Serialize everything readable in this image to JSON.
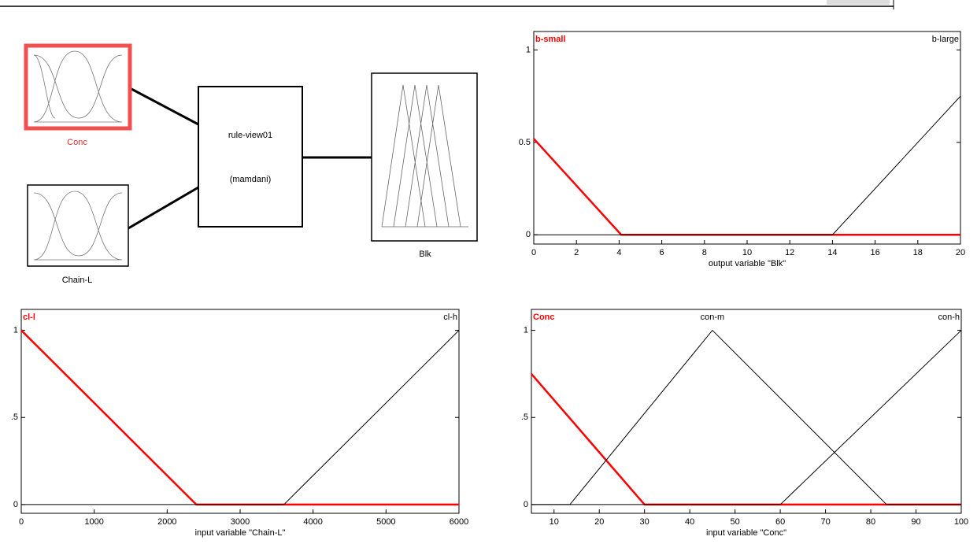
{
  "diagram": {
    "nodes": [
      {
        "label": "Conc"
      },
      {
        "label": "Chain-L"
      },
      {
        "label": "rule-view01",
        "sublabel": "(mamdani)"
      },
      {
        "label": "Blk"
      }
    ]
  },
  "chart_data": [
    {
      "type": "line",
      "xlabel": "output variable \"Blk\"",
      "xlim": [
        0,
        20
      ],
      "ylim": [
        -0.05,
        1.1
      ],
      "xticks": [
        0,
        2,
        4,
        6,
        8,
        10,
        12,
        14,
        16,
        18,
        20
      ],
      "yticks": [
        0,
        0.5,
        1
      ],
      "series": [
        {
          "name": "b-small",
          "color": "#ff0000",
          "x": [
            0,
            4.1,
            20
          ],
          "values": [
            0.52,
            0,
            0
          ]
        },
        {
          "name": "b-large",
          "color": "#000000",
          "x": [
            0,
            14,
            20
          ],
          "values": [
            0,
            0,
            0.75
          ]
        }
      ]
    },
    {
      "type": "line",
      "xlabel": "input variable \"Chain-L\"",
      "xlim": [
        0,
        6000
      ],
      "ylim": [
        -0.05,
        1.12
      ],
      "xticks": [
        0,
        1000,
        2000,
        3000,
        4000,
        5000,
        6000
      ],
      "yticks": [
        0,
        {
          "value": 0.5,
          "label": ".5"
        },
        1
      ],
      "series": [
        {
          "name": "cl-l",
          "color": "#ff0000",
          "x": [
            0,
            2400,
            6000
          ],
          "values": [
            1,
            0,
            0
          ]
        },
        {
          "name": "cl-h",
          "color": "#000000",
          "x": [
            0,
            3600,
            6000
          ],
          "values": [
            0,
            0,
            1
          ]
        }
      ]
    },
    {
      "type": "line",
      "xlabel": "input variable \"Conc\"",
      "xlim": [
        5,
        100
      ],
      "ylim": [
        -0.05,
        1.12
      ],
      "xticks": [
        10,
        20,
        30,
        40,
        50,
        60,
        70,
        80,
        90,
        100
      ],
      "yticks": [
        0,
        {
          "value": 0.5,
          "label": ".5"
        },
        1
      ],
      "series": [
        {
          "name": "Conc",
          "color": "#ff0000",
          "x": [
            5,
            30,
            100
          ],
          "values": [
            0.75,
            0,
            0
          ]
        },
        {
          "name": "con-m",
          "color": "#000000",
          "x": [
            5,
            13.5,
            45,
            83.5,
            100
          ],
          "values": [
            0,
            0,
            1,
            0,
            0
          ]
        },
        {
          "name": "con-h",
          "color": "#000000",
          "x": [
            5,
            60,
            100
          ],
          "values": [
            0,
            0,
            1
          ]
        }
      ]
    }
  ]
}
